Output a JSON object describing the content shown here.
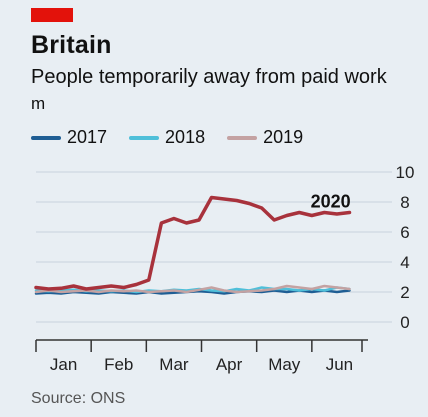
{
  "header": {
    "title": "Britain",
    "subtitle": "People temporarily away from paid work",
    "unit": "m"
  },
  "legend": [
    {
      "label": "2017",
      "color": "#1f5e94"
    },
    {
      "label": "2018",
      "color": "#4fbfd9"
    },
    {
      "label": "2019",
      "color": "#c4a2a2"
    }
  ],
  "footer": {
    "source": "Source: ONS"
  },
  "colors": {
    "highlight": "#a8323c",
    "grid": "#c9d3dc",
    "axis": "#333333"
  },
  "chart_data": {
    "type": "line",
    "title": "Britain",
    "subtitle": "People temporarily away from paid work",
    "ylabel": "m",
    "ylim": [
      0,
      10
    ],
    "yticks": [
      0,
      2,
      4,
      6,
      8,
      10
    ],
    "xlim": [
      0,
      26
    ],
    "x_tick_positions": [
      0,
      4.4,
      8.8,
      13.2,
      17.6,
      22,
      26
    ],
    "x_categories": [
      "Jan",
      "Feb",
      "Mar",
      "Apr",
      "May",
      "Jun"
    ],
    "x_category_centers": [
      2.2,
      6.6,
      11,
      15.4,
      19.8,
      24.2
    ],
    "grid": true,
    "legend_position": "top-left",
    "annotations": [
      {
        "text": "2020",
        "x": 23.5,
        "y": 8.1
      }
    ],
    "series": [
      {
        "name": "2017",
        "color": "#1f5e94",
        "x": [
          0,
          1,
          2,
          3,
          4,
          5,
          6,
          7,
          8,
          9,
          10,
          11,
          12,
          13,
          14,
          15,
          16,
          17,
          18,
          19,
          20,
          21,
          22,
          23,
          24,
          25
        ],
        "y": [
          1.9,
          1.95,
          1.9,
          2.0,
          1.95,
          1.9,
          2.0,
          1.95,
          1.9,
          2.0,
          1.9,
          1.95,
          2.0,
          2.05,
          2.0,
          1.9,
          2.0,
          2.05,
          2.0,
          2.1,
          2.0,
          2.1,
          2.0,
          2.1,
          2.0,
          2.1
        ]
      },
      {
        "name": "2018",
        "color": "#4fbfd9",
        "x": [
          0,
          1,
          2,
          3,
          4,
          5,
          6,
          7,
          8,
          9,
          10,
          11,
          12,
          13,
          14,
          15,
          16,
          17,
          18,
          19,
          20,
          21,
          22,
          23,
          24,
          25
        ],
        "y": [
          2.1,
          2.05,
          2.1,
          2.15,
          2.05,
          2.1,
          2.05,
          2.1,
          2.0,
          2.1,
          2.05,
          2.15,
          2.1,
          2.2,
          2.1,
          2.05,
          2.2,
          2.1,
          2.3,
          2.2,
          2.2,
          2.1,
          2.2,
          2.1,
          2.3,
          2.2
        ]
      },
      {
        "name": "2019",
        "color": "#c4a2a2",
        "x": [
          0,
          1,
          2,
          3,
          4,
          5,
          6,
          7,
          8,
          9,
          10,
          11,
          12,
          13,
          14,
          15,
          16,
          17,
          18,
          19,
          20,
          21,
          22,
          23,
          24,
          25
        ],
        "y": [
          2.0,
          2.1,
          2.0,
          2.05,
          2.1,
          2.0,
          2.1,
          2.05,
          2.1,
          2.0,
          2.05,
          2.1,
          2.0,
          2.15,
          2.3,
          2.1,
          2.0,
          2.05,
          2.1,
          2.2,
          2.4,
          2.3,
          2.2,
          2.4,
          2.3,
          2.2
        ]
      },
      {
        "name": "2020",
        "color": "#a8323c",
        "x": [
          0,
          1,
          2,
          3,
          4,
          5,
          6,
          7,
          8,
          9,
          10,
          11,
          12,
          13,
          14,
          15,
          16,
          17,
          18,
          19,
          20,
          21,
          22,
          23,
          24,
          25
        ],
        "y": [
          2.3,
          2.2,
          2.25,
          2.4,
          2.2,
          2.3,
          2.4,
          2.3,
          2.5,
          2.8,
          6.6,
          6.9,
          6.6,
          6.8,
          8.3,
          8.2,
          8.1,
          7.9,
          7.6,
          6.8,
          7.1,
          7.3,
          7.1,
          7.3,
          7.2,
          7.3
        ]
      }
    ]
  }
}
